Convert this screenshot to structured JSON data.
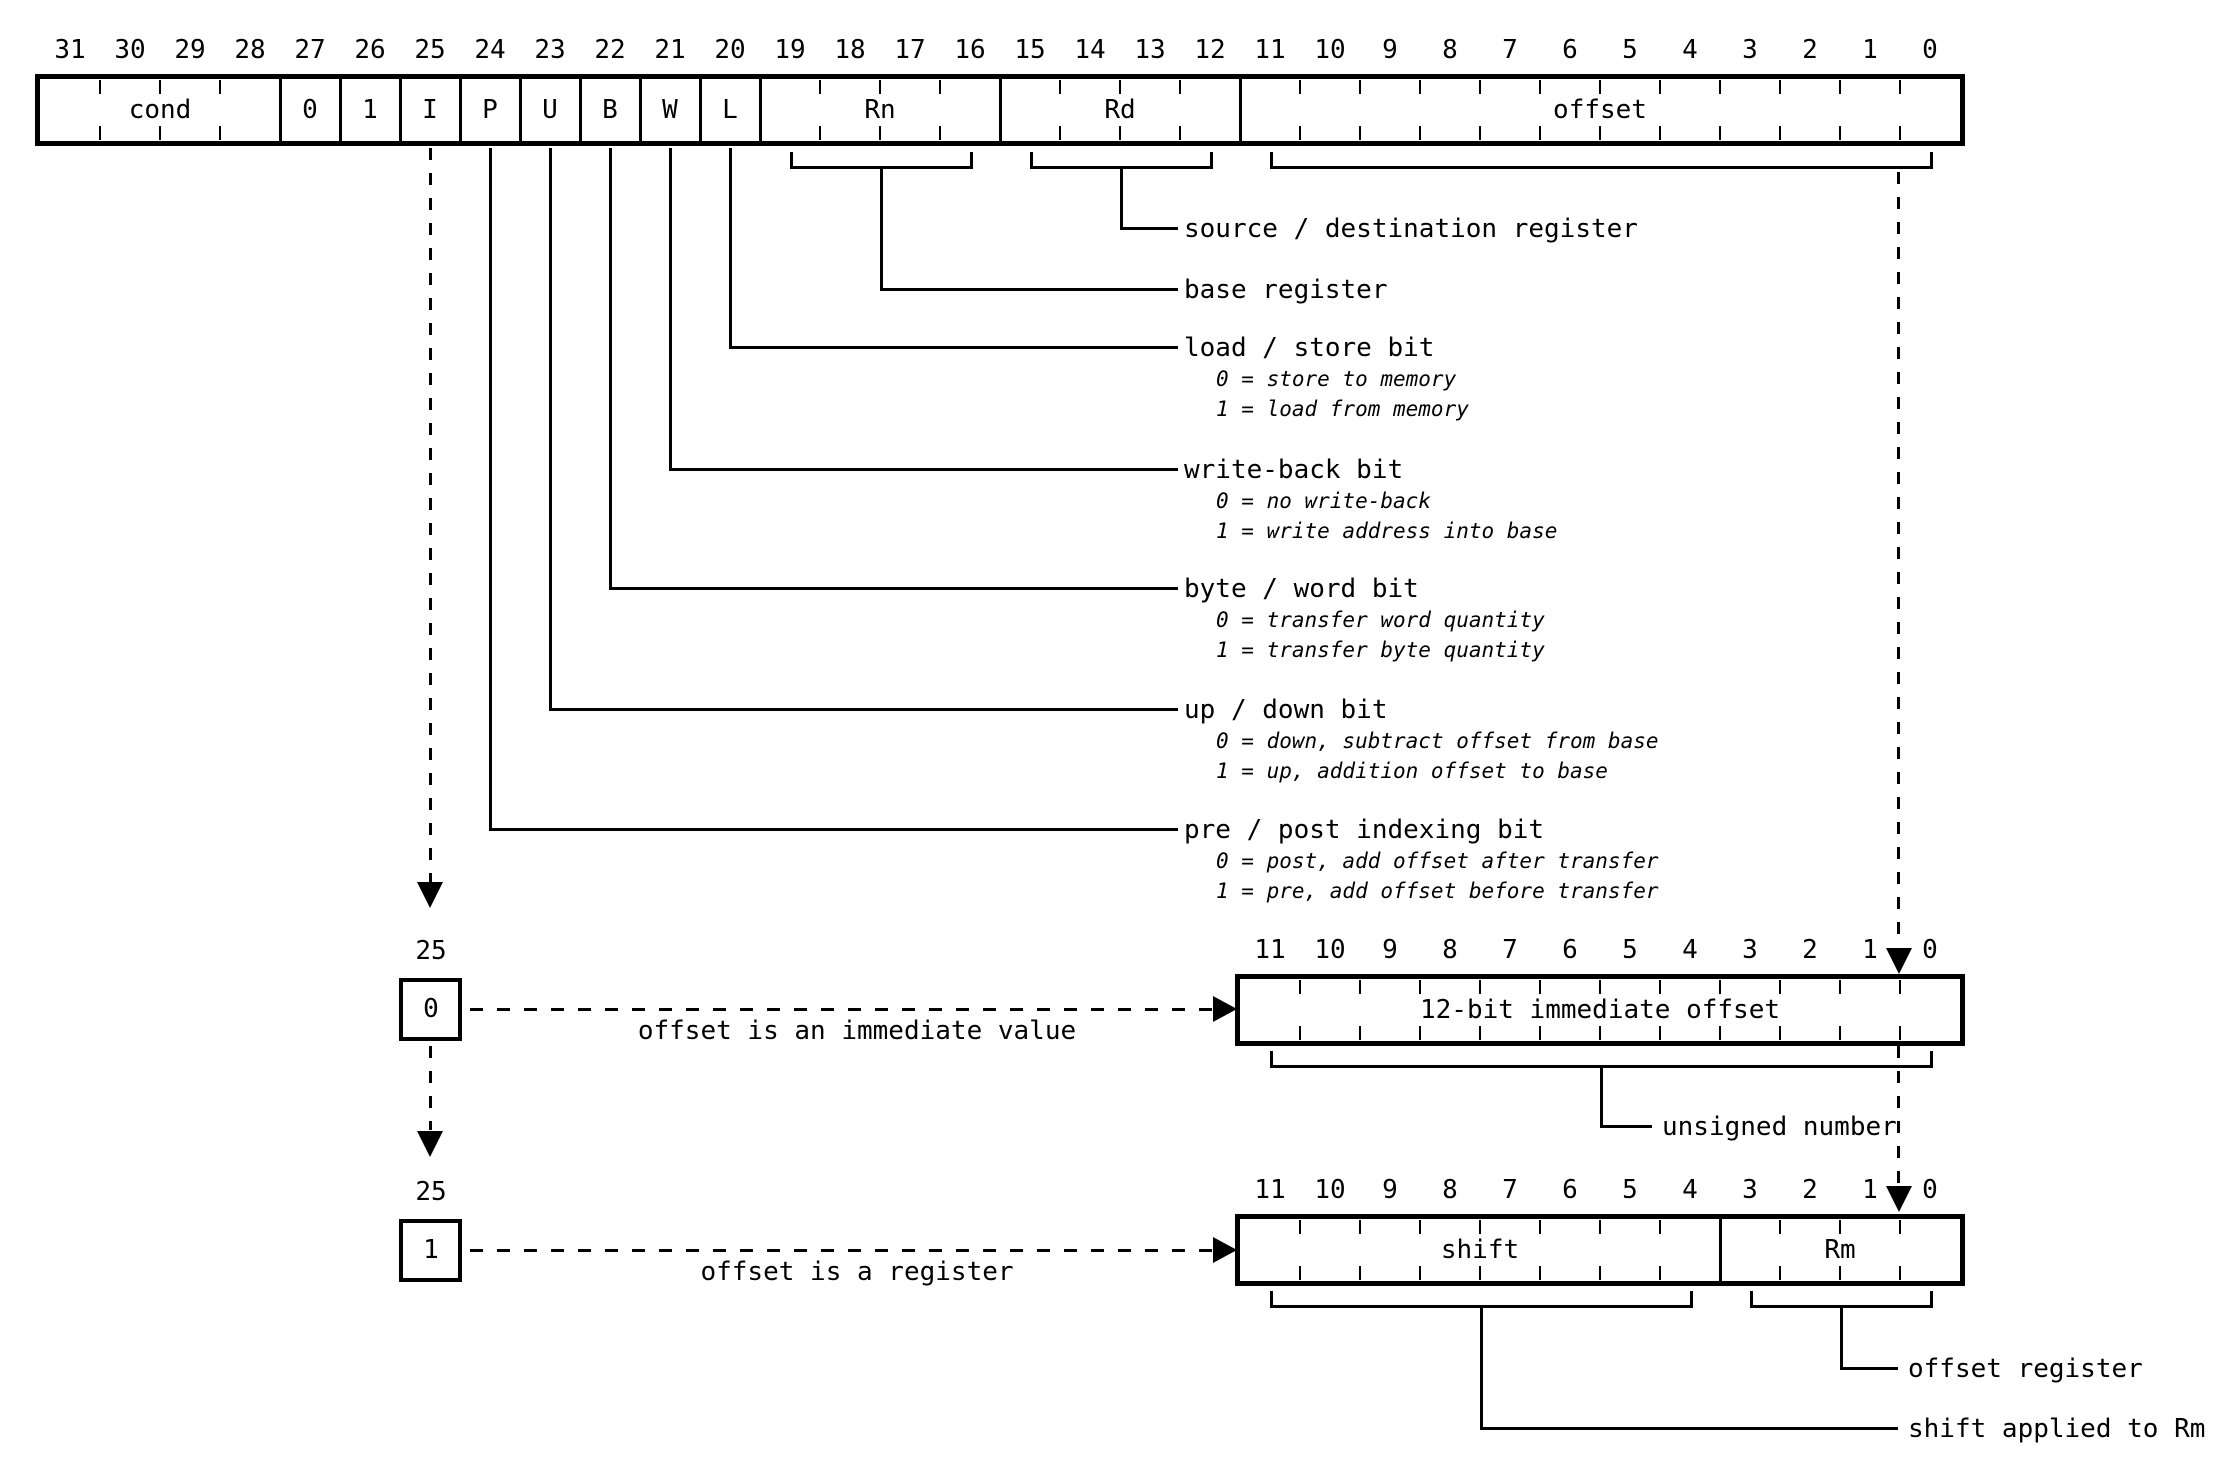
{
  "colors": {
    "ink": "#000000",
    "background": "#ffffff"
  },
  "main_register": {
    "bit_numbers": [
      31,
      30,
      29,
      28,
      27,
      26,
      25,
      24,
      23,
      22,
      21,
      20,
      19,
      18,
      17,
      16,
      15,
      14,
      13,
      12,
      11,
      10,
      9,
      8,
      7,
      6,
      5,
      4,
      3,
      2,
      1,
      0
    ],
    "fields": [
      {
        "label": "cond",
        "high": 31,
        "low": 28
      },
      {
        "label": "0",
        "high": 27,
        "low": 27
      },
      {
        "label": "1",
        "high": 26,
        "low": 26
      },
      {
        "label": "I",
        "high": 25,
        "low": 25
      },
      {
        "label": "P",
        "high": 24,
        "low": 24
      },
      {
        "label": "U",
        "high": 23,
        "low": 23
      },
      {
        "label": "B",
        "high": 22,
        "low": 22
      },
      {
        "label": "W",
        "high": 21,
        "low": 21
      },
      {
        "label": "L",
        "high": 20,
        "low": 20
      },
      {
        "label": "Rn",
        "high": 19,
        "low": 16
      },
      {
        "label": "Rd",
        "high": 15,
        "low": 12
      },
      {
        "label": "offset",
        "high": 11,
        "low": 0
      }
    ]
  },
  "field_annotations": [
    {
      "field": "Rd",
      "label": "source / destination register",
      "notes": []
    },
    {
      "field": "Rn",
      "label": "base register",
      "notes": []
    },
    {
      "field": "L",
      "label": "load / store bit",
      "notes": [
        "0 = store to memory",
        "1 = load from memory"
      ]
    },
    {
      "field": "W",
      "label": "write-back bit",
      "notes": [
        "0 = no write-back",
        "1 = write address into base"
      ]
    },
    {
      "field": "B",
      "label": "byte / word bit",
      "notes": [
        "0 = transfer word quantity",
        "1 = transfer byte quantity"
      ]
    },
    {
      "field": "U",
      "label": "up / down bit",
      "notes": [
        "0 = down, subtract offset from base",
        "1 = up, addition offset to base"
      ]
    },
    {
      "field": "P",
      "label": "pre / post indexing bit",
      "notes": [
        "0 = post, add offset after transfer",
        "1 = pre, add offset before transfer"
      ]
    }
  ],
  "immediate_variant": {
    "i_bit_number": "25",
    "i_bit_value": "0",
    "arrow_label": "offset is an immediate value",
    "register": {
      "bit_numbers": [
        11,
        10,
        9,
        8,
        7,
        6,
        5,
        4,
        3,
        2,
        1,
        0
      ],
      "fields": [
        {
          "label": "12-bit immediate offset",
          "high": 11,
          "low": 0
        }
      ]
    },
    "bracket_annotation": "unsigned number"
  },
  "register_variant": {
    "i_bit_number": "25",
    "i_bit_value": "1",
    "arrow_label": "offset is a register",
    "register": {
      "bit_numbers": [
        11,
        10,
        9,
        8,
        7,
        6,
        5,
        4,
        3,
        2,
        1,
        0
      ],
      "fields": [
        {
          "label": "shift",
          "high": 11,
          "low": 4
        },
        {
          "label": "Rm",
          "high": 3,
          "low": 0
        }
      ]
    },
    "bracket_annotations": [
      {
        "field": "Rm",
        "label": "offset register"
      },
      {
        "field": "shift",
        "label": "shift applied to Rm"
      }
    ]
  }
}
